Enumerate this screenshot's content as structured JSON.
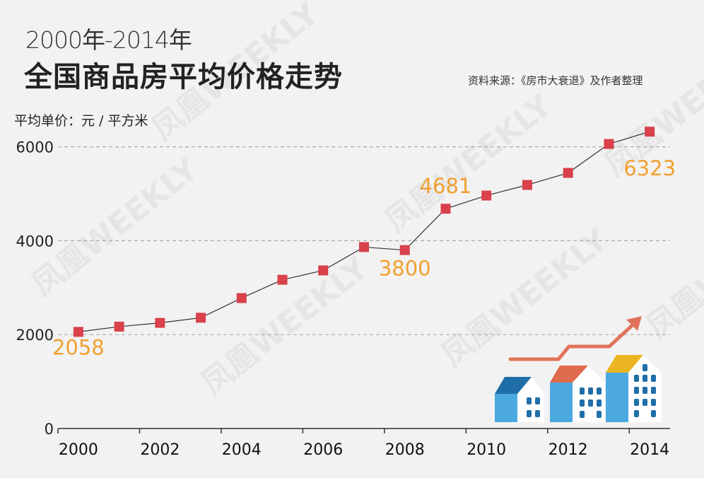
{
  "header": {
    "subtitle": "2000年-2014年",
    "title": "全国商品房平均价格走势",
    "source": "资料来源：《房市大衰退》及作者整理"
  },
  "watermark": "凤凰WEEKLY",
  "colors": {
    "marker": "#d9414b",
    "label": "#f0a030",
    "line": "#333333",
    "grid": "#aaaaaa",
    "arrow": "#e0735a"
  },
  "chart_data": {
    "type": "line",
    "title": "全国商品房平均价格走势",
    "ylabel": "平均单价：元 / 平方米",
    "xlabel": "",
    "categories": [
      "2000",
      "2001",
      "2002",
      "2003",
      "2004",
      "2005",
      "2006",
      "2007",
      "2008",
      "2009",
      "2010",
      "2011",
      "2012",
      "2013",
      "2014"
    ],
    "values": [
      2058,
      2170,
      2250,
      2359,
      2778,
      3168,
      3367,
      3864,
      3800,
      4681,
      4962,
      5188,
      5444,
      6060,
      6323
    ],
    "x_tick_labels": [
      "2000",
      "2002",
      "2004",
      "2006",
      "2008",
      "2010",
      "2012",
      "2014"
    ],
    "y_ticks": [
      0,
      2000,
      4000,
      6000
    ],
    "ylim": [
      0,
      6600
    ],
    "grid": "horizontal dashed",
    "data_labels": [
      {
        "year": "2000",
        "text": "2058"
      },
      {
        "year": "2008",
        "text": "3800"
      },
      {
        "year": "2009",
        "text": "4681"
      },
      {
        "year": "2014",
        "text": "6323"
      }
    ],
    "legend": "none"
  }
}
